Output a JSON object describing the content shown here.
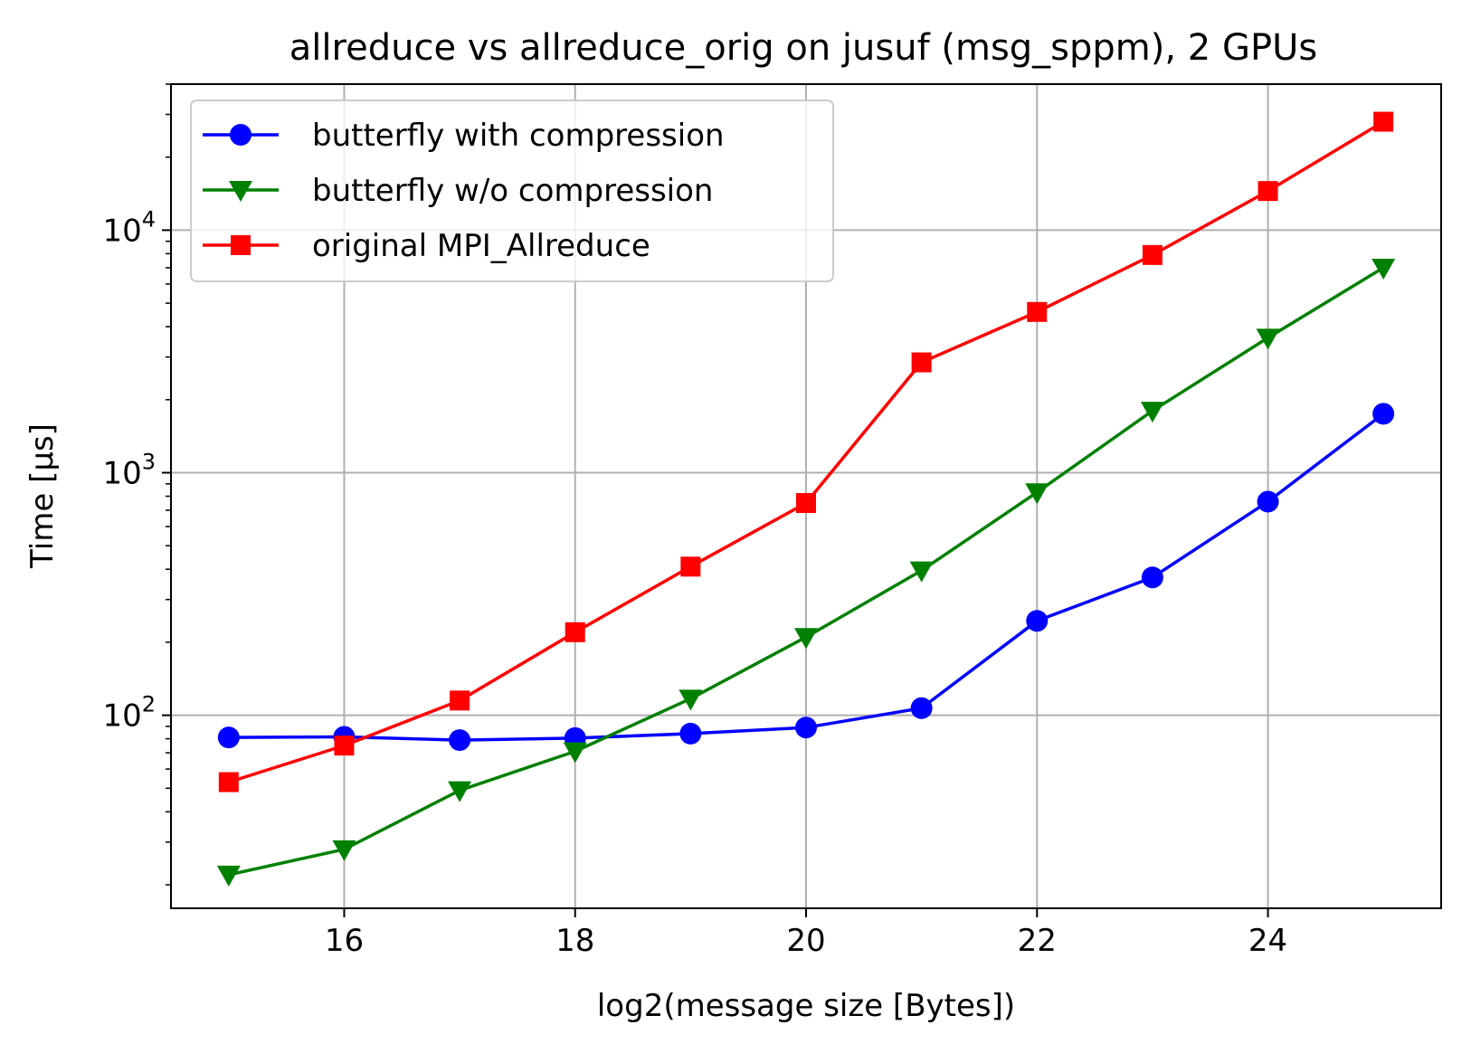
{
  "chart_data": {
    "type": "line",
    "title": "allreduce vs allreduce_orig on jusuf (msg_sppm), 2 GPUs",
    "xlabel": "log2(message size [Bytes])",
    "ylabel": "Time [µs]",
    "x": [
      15,
      16,
      17,
      18,
      19,
      20,
      21,
      22,
      23,
      24,
      25
    ],
    "xlim": [
      14.5,
      25.5
    ],
    "xticks": [
      16,
      18,
      20,
      22,
      24
    ],
    "y_scale": "log",
    "ylim": [
      16,
      40000
    ],
    "yticks": [
      100,
      1000,
      10000
    ],
    "ytick_labels": [
      {
        "base": "10",
        "exp": "2"
      },
      {
        "base": "10",
        "exp": "3"
      },
      {
        "base": "10",
        "exp": "4"
      }
    ],
    "grid": true,
    "legend_position": "upper-left",
    "series": [
      {
        "name": "butterfly with compression",
        "color": "#0000ff",
        "marker": "circle",
        "values": [
          81,
          81.5,
          79,
          80.5,
          84,
          89,
          107,
          245,
          370,
          760,
          1750
        ]
      },
      {
        "name": "butterfly w/o compression",
        "color": "#008000",
        "marker": "triangle-down",
        "values": [
          22,
          28,
          49,
          71,
          117,
          210,
          395,
          830,
          1800,
          3600,
          7000
        ]
      },
      {
        "name": "original MPI_Allreduce",
        "color": "#ff0000",
        "marker": "square",
        "values": [
          53,
          75,
          115,
          220,
          410,
          750,
          2850,
          4600,
          7900,
          14500,
          28000
        ]
      }
    ]
  }
}
